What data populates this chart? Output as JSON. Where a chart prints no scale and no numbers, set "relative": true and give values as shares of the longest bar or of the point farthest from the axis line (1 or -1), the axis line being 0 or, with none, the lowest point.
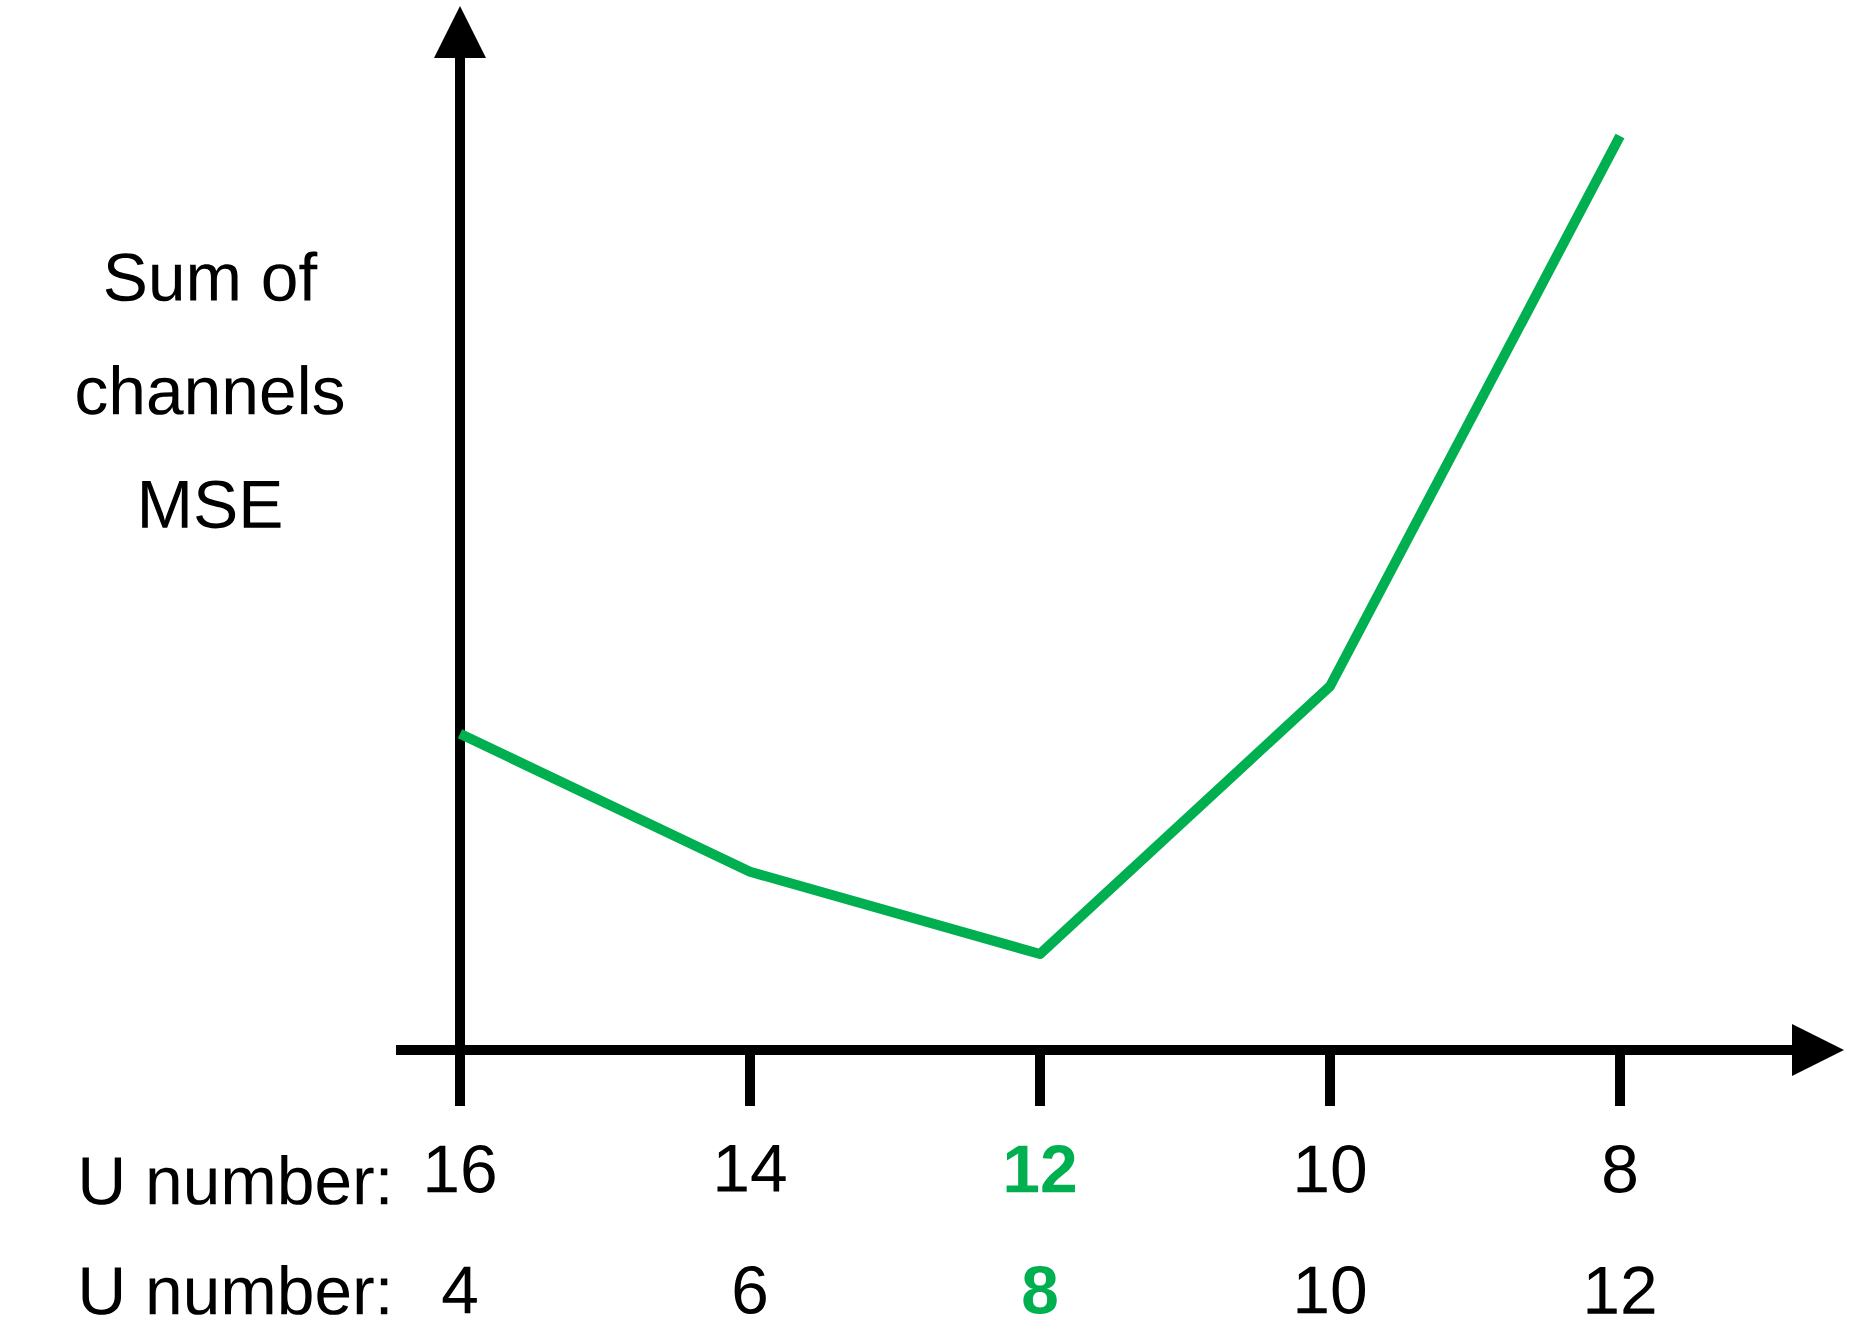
{
  "chart_data": {
    "type": "line",
    "relative": true,
    "ylabel": "Sum of channels MSE",
    "categories": [
      "16",
      "14",
      "12",
      "10",
      "8"
    ],
    "series": [
      {
        "color": "#00b050",
        "values": [
          0.346,
          0.195,
          0.105,
          0.398,
          1.0
        ]
      }
    ],
    "annotations": [
      "U number:",
      "U number:",
      "4",
      "6",
      "8",
      "10",
      "12"
    ]
  }
}
